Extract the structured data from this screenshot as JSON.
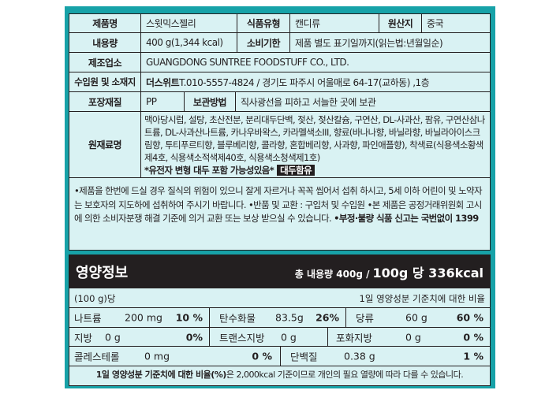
{
  "label": {
    "product_name_label": "제품명",
    "product_name": "스윗믹스젤리",
    "food_type_label": "식품유형",
    "food_type": "캔디류",
    "origin_label": "원산지",
    "origin": "중국",
    "content_label": "내용량",
    "content": "400 g(1,344 kcal)",
    "expiry_label": "소비기한",
    "expiry": "제품 별도 표기일까지(읽는법:년월일순)",
    "manufacturer_label": "제조업소",
    "manufacturer": "GUANGDONG SUNTREE FOODSTUFF CO., LTD.",
    "importer_label": "수입원 및 소재지",
    "importer_name": "더스위트",
    "importer_info": " T.010-5557-4824 / 경기도 파주시 어울매로 64-17(교하동) ,1층",
    "packaging_label": "포장재질",
    "packaging": "PP",
    "storage_label": "보관방법",
    "storage": "직사광선을 피하고 서늘한 곳에 보관",
    "ingredients_label": "원재료명",
    "ingredients": "맥아당시럽, 설탕, 초산전분, 분리대두단백, 젖산, 젖산칼슘, 구연산, DL-사과산, 팜유, 구연산삼나트륨, DL-사과산나트륨, 카나우바왁스, 카라멜색소III, 향료(바나나향, 바닐라향, 바닐라아이스크림향, 투티푸르티향, 블루베리향, 콜라향, 혼합베리향, 사과향, 파인애플향), 착색료(식용색소황색제4호, 식용색소적색제40호, 식용색소청색제1호)",
    "gmo_notice": "*유전자 변형 대두 포함 가능성있음*",
    "allergen_badge": "대두함유",
    "notice": "•제품을 한번에 드실 경우 질식의 위험이 있으니 잘게 자르거나 꼭꼭 씹어서 섭취 하시고, 5세 이하 어린이 및 노약자는 보호자의 지도하에 섭취하여 주시기 바랍니다. •반품 및 교환 : 구입처 및 수입원 •본 제품은 공정거래위원회 고시에 의한 소비자분쟁 해결 기준에 의거 교환 또는 보상 받으실 수 있습니다. ",
    "notice_bold": "•부정·불량 식품 신고는 국번없이 1399"
  },
  "nutrition": {
    "title": "영양정보",
    "total": "총 내용량 400g /",
    "per": "100g 당  336kcal",
    "basis": "(100 g)당",
    "ratio_header": "1일 영양성분 기준치에 대한 비율",
    "sodium": {
      "name": "나트륨",
      "amount": "200 mg",
      "pct": "10 %"
    },
    "carbs": {
      "name": "탄수화물",
      "amount": "83.5g",
      "pct": "26%"
    },
    "sugars": {
      "name": "당류",
      "amount": "60 g",
      "pct": "60 %"
    },
    "fat": {
      "name": "지방",
      "amount": "0 g",
      "pct": "0%"
    },
    "trans_fat": {
      "name": "트랜스지방",
      "amount": "0 g"
    },
    "sat_fat": {
      "name": "포화지방",
      "amount": "0 g",
      "pct": "0 %"
    },
    "cholesterol": {
      "name": "콜레스테롤",
      "amount": "0 mg",
      "pct": "0 %"
    },
    "protein": {
      "name": "단백질",
      "amount": "0.38 g",
      "pct": "1 %"
    },
    "footnote_bold": "1일 영양성분 기준치에 대한 비율(%)",
    "footnote": "은 2,000kcal 기준이므로 개인의 필요 열량에 따라 다를 수 있습니다."
  },
  "colors": {
    "frame": "#17a2a8",
    "panel": "#d9f2f3",
    "dark": "#231f20"
  }
}
